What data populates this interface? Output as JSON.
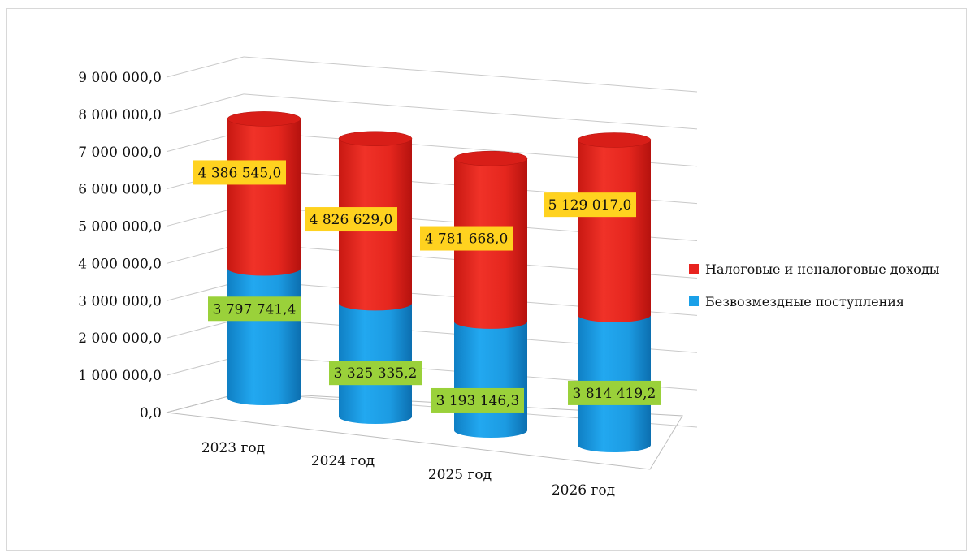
{
  "chart_data": {
    "type": "bar",
    "stacked": true,
    "style": "3d-cylinder",
    "title": "",
    "xlabel": "",
    "ylabel": "",
    "ylim": [
      0,
      9000000
    ],
    "yticks": [
      "0,0",
      "1 000 000,0",
      "2 000 000,0",
      "3 000 000,0",
      "4 000 000,0",
      "5 000 000,0",
      "6 000 000,0",
      "7 000 000,0",
      "8 000 000,0",
      "9 000 000,0"
    ],
    "categories": [
      "2023 год",
      "2024 год",
      "2025 год",
      "2026 год"
    ],
    "series": [
      {
        "name": "Безвозмездные поступления",
        "color": "#1aa0e8",
        "label_bg": "#9ad13a",
        "values": [
          3797741.4,
          3325335.2,
          3193146.3,
          3814419.2
        ],
        "labels": [
          "3 797 741,4",
          "3 325 335,2",
          "3 193 146,3",
          "3 814 419,2"
        ]
      },
      {
        "name": "Налоговые и неналоговые доходы",
        "color": "#e8231f",
        "label_bg": "#ffd21f",
        "values": [
          4386545.0,
          4826629.0,
          4781668.0,
          5129017.0
        ],
        "labels": [
          "4 386 545,0",
          "4 826 629,0",
          "4 781 668,0",
          "5 129 017,0"
        ]
      }
    ],
    "grid": true,
    "legend_position": "right"
  }
}
